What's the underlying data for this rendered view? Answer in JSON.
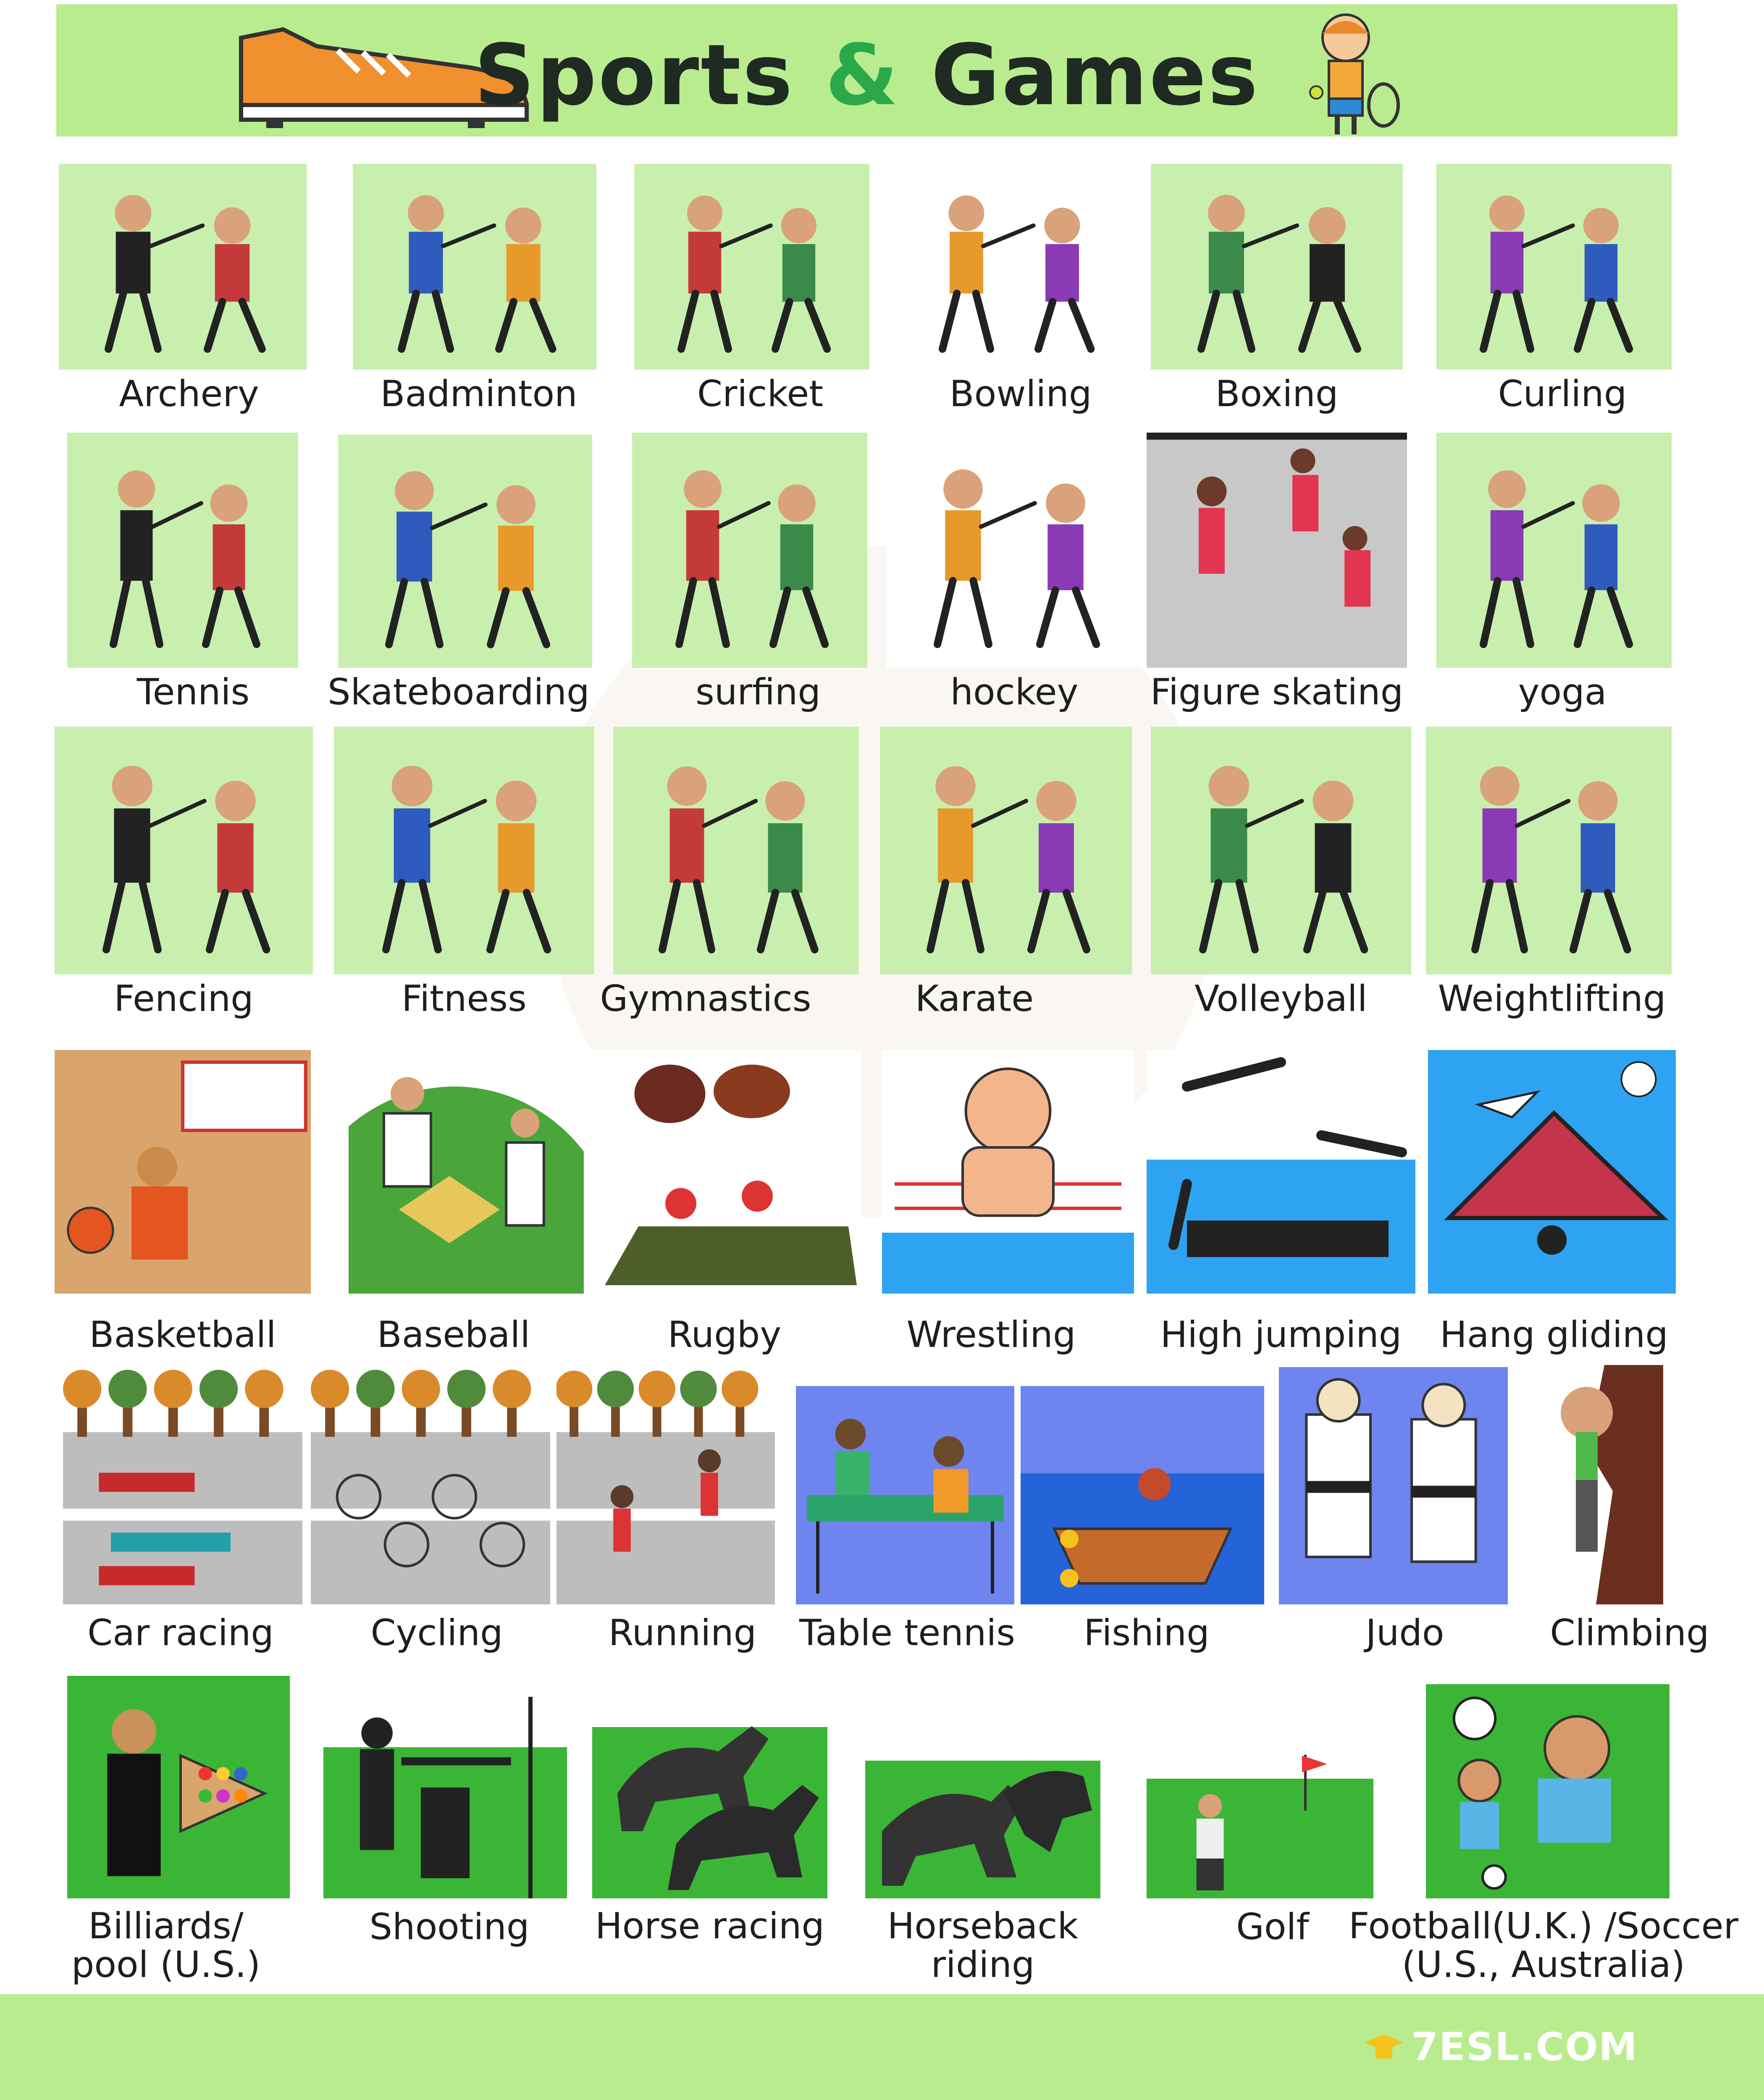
{
  "header": {
    "title_part1": "Sports",
    "title_amp": "&",
    "title_part2": "Games",
    "background": "#b9ec8e"
  },
  "sports": [
    {
      "name": "Archery",
      "icon": "archery-icon"
    },
    {
      "name": "Badminton",
      "icon": "badminton-icon"
    },
    {
      "name": "Cricket",
      "icon": "cricket-icon"
    },
    {
      "name": "Bowling",
      "icon": "bowling-icon"
    },
    {
      "name": "Boxing",
      "icon": "boxing-icon"
    },
    {
      "name": "Curling",
      "icon": "curling-icon"
    },
    {
      "name": "Tennis",
      "icon": "tennis-icon"
    },
    {
      "name": "Skateboarding",
      "icon": "skateboarding-icon"
    },
    {
      "name": "surfing",
      "icon": "surfing-icon"
    },
    {
      "name": "hockey",
      "icon": "hockey-icon"
    },
    {
      "name": "Figure skating",
      "icon": "figure-skating-icon"
    },
    {
      "name": "yoga",
      "icon": "yoga-icon"
    },
    {
      "name": "Fencing",
      "icon": "fencing-icon"
    },
    {
      "name": "Fitness",
      "icon": "fitness-icon"
    },
    {
      "name": "Gymnastics",
      "icon": "gymnastics-icon"
    },
    {
      "name": "Karate",
      "icon": "karate-icon"
    },
    {
      "name": "Volleyball",
      "icon": "volleyball-icon"
    },
    {
      "name": "Weightlifting",
      "icon": "weightlifting-icon"
    },
    {
      "name": "Basketball",
      "icon": "basketball-icon"
    },
    {
      "name": "Baseball",
      "icon": "baseball-icon"
    },
    {
      "name": "Rugby",
      "icon": "rugby-icon"
    },
    {
      "name": "Wrestling",
      "icon": "wrestling-icon"
    },
    {
      "name": "High jumping",
      "icon": "high-jumping-icon"
    },
    {
      "name": "Hang gliding",
      "icon": "hang-gliding-icon"
    },
    {
      "name": "Car racing",
      "icon": "car-racing-icon"
    },
    {
      "name": "Cycling",
      "icon": "cycling-icon"
    },
    {
      "name": "Running",
      "icon": "running-icon"
    },
    {
      "name": "Table tennis",
      "icon": "table-tennis-icon"
    },
    {
      "name": "Fishing",
      "icon": "fishing-icon"
    },
    {
      "name": "Judo",
      "icon": "judo-icon"
    },
    {
      "name": "Climbing",
      "icon": "climbing-icon"
    },
    {
      "name": "Billiards/ pool (U.S.)",
      "icon": "billiards-icon"
    },
    {
      "name": "Shooting",
      "icon": "shooting-icon"
    },
    {
      "name": "Horse racing",
      "icon": "horse-racing-icon"
    },
    {
      "name": "Horseback riding",
      "icon": "horseback-riding-icon"
    },
    {
      "name": "Golf",
      "icon": "golf-icon"
    },
    {
      "name": "Football(U.K.) /Soccer (U.S., Australia)",
      "icon": "football-icon"
    }
  ],
  "footer": {
    "brand": "7ESL.COM"
  },
  "colors": {
    "light_green": "#c9efae",
    "bright_green": "#3bb536",
    "blue": "#6e84ee",
    "sky_blue": "#2ea3f2",
    "dark": "#222222"
  }
}
